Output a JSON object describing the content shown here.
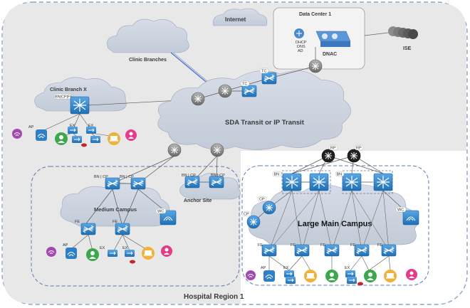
{
  "region_label": "Hospital Region 1",
  "internet_label": "Internet",
  "data_center": {
    "title": "Data Center 1",
    "services": [
      "DHCP",
      "DNS",
      "AD"
    ],
    "dnac_label": "DNAC"
  },
  "ise_label": "ISE",
  "clinic_branches_label": "Clinic Branches",
  "clinic_branch_x_label": "Clinic Branch X",
  "transit_label": "SDA Transit  or IP Transit",
  "medium_campus_label": "Medium Campus",
  "anchor_site_label": "Anchor Site",
  "large_campus_label": "Large Main Campus",
  "tags": {
    "tc": "TC",
    "rp": "RP",
    "bn": "BN",
    "cp": "CP",
    "bn_cp": "BN | CP",
    "bn_cp_fe": "BN|CP|FE",
    "wc": "WC",
    "fe": "FE",
    "ap": "AP",
    "ex": "EX"
  }
}
